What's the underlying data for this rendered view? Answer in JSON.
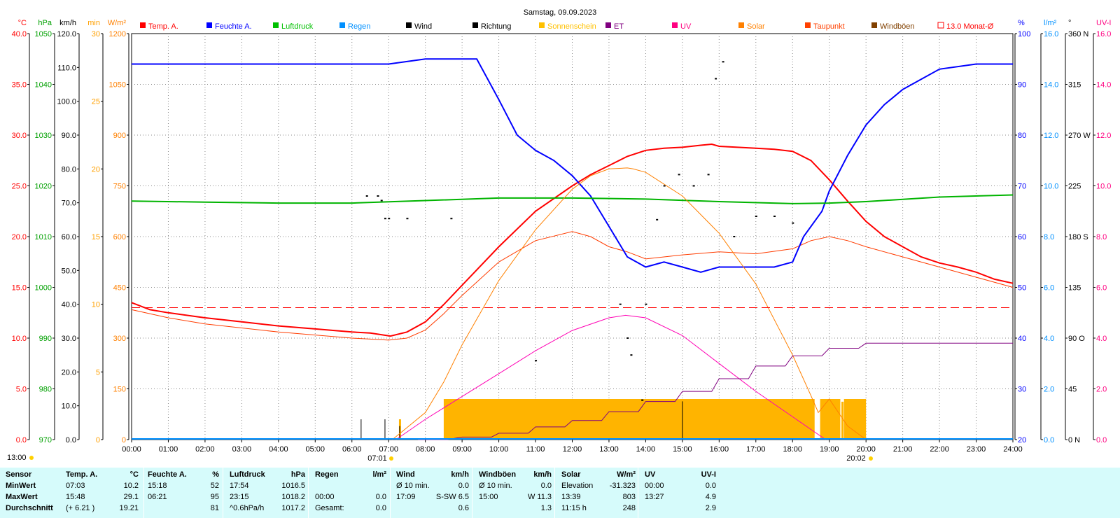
{
  "chart_data": {
    "type": "line",
    "title": "Samstag, 09.09.2023",
    "legend": [
      "Temp. A.",
      "Feuchte A.",
      "Luftdruck",
      "Regen",
      "Wind",
      "Richtung",
      "Sonnenschein",
      "ET",
      "UV",
      "Solar",
      "Taupunkt",
      "Windböen",
      "13.0 Monat-Ø"
    ],
    "x_ticks": [
      "00:00",
      "01:00",
      "02:00",
      "03:00",
      "04:00",
      "05:00",
      "06:00",
      "07:00",
      "08:00",
      "09:00",
      "10:00",
      "11:00",
      "12:00",
      "13:00",
      "14:00",
      "15:00",
      "16:00",
      "17:00",
      "18:00",
      "19:00",
      "20:00",
      "21:00",
      "22:00",
      "23:00",
      "24:00"
    ],
    "sunrise": "07:01",
    "sunset": "20:02",
    "sun_label": "13:00",
    "axes": {
      "temp": {
        "unit": "°C",
        "ticks": [
          "0.0",
          "5.0",
          "10.0",
          "15.0",
          "20.0",
          "25.0",
          "30.0",
          "35.0",
          "40.0"
        ],
        "range": [
          0,
          40
        ]
      },
      "press": {
        "unit": "hPa",
        "ticks": [
          "970",
          "980",
          "990",
          "1000",
          "1010",
          "1020",
          "1030",
          "1040",
          "1050"
        ],
        "range": [
          970,
          1050
        ]
      },
      "wind": {
        "unit": "km/h",
        "ticks": [
          "0.0",
          "10.0",
          "20.0",
          "30.0",
          "40.0",
          "50.0",
          "60.0",
          "70.0",
          "80.0",
          "90.0",
          "100.0",
          "110.0",
          "120.0"
        ],
        "range": [
          0,
          120
        ]
      },
      "min": {
        "unit": "min",
        "ticks": [
          "0",
          "5",
          "10",
          "15",
          "20",
          "25",
          "30"
        ],
        "range": [
          0,
          30
        ]
      },
      "solar": {
        "unit": "W/m²",
        "ticks": [
          "0",
          "150",
          "300",
          "450",
          "600",
          "750",
          "900",
          "1050",
          "1200"
        ],
        "range": [
          0,
          1200
        ]
      },
      "hum": {
        "unit": "%",
        "ticks": [
          "20",
          "30",
          "40",
          "50",
          "60",
          "70",
          "80",
          "90",
          "100"
        ],
        "range": [
          20,
          100
        ]
      },
      "rain": {
        "unit": "l/m²",
        "ticks": [
          "0.0",
          "2.0",
          "4.0",
          "6.0",
          "8.0",
          "10.0",
          "12.0",
          "14.0",
          "16.0"
        ],
        "range": [
          0,
          16
        ]
      },
      "dir": {
        "unit": "°",
        "ticks": [
          "0",
          "45",
          "90",
          "135",
          "180",
          "225",
          "270",
          "315",
          "360"
        ],
        "labels": [
          "N",
          "",
          "O",
          "",
          "S",
          "",
          "W",
          "",
          "N"
        ],
        "range": [
          0,
          360
        ]
      },
      "uv": {
        "unit": "UV-I",
        "ticks": [
          "0.0",
          "2.0",
          "4.0",
          "6.0",
          "8.0",
          "10.0",
          "12.0",
          "14.0",
          "16.0"
        ],
        "range": [
          0,
          16
        ]
      }
    },
    "series": [
      {
        "name": "Temp. A.",
        "axis": "temp",
        "color": "#ff0000",
        "x": [
          0,
          0.5,
          1,
          2,
          3,
          4,
          5,
          6,
          6.5,
          7.05,
          7.5,
          8,
          8.5,
          9,
          10,
          11,
          12,
          12.5,
          13,
          13.5,
          14,
          14.5,
          15,
          15.5,
          15.8,
          16,
          16.5,
          17,
          17.5,
          18,
          18.5,
          19,
          19.5,
          20,
          20.5,
          21,
          21.5,
          22,
          22.5,
          23,
          23.5,
          24
        ],
        "y": [
          13.5,
          12.8,
          12.5,
          12.0,
          11.6,
          11.2,
          10.9,
          10.6,
          10.5,
          10.2,
          10.6,
          11.6,
          13.3,
          15.2,
          19.0,
          22.5,
          25.0,
          26.1,
          27.0,
          27.9,
          28.5,
          28.7,
          28.8,
          29.0,
          29.1,
          28.9,
          28.8,
          28.7,
          28.6,
          28.4,
          27.5,
          25.6,
          23.5,
          21.5,
          20.0,
          19.0,
          18.0,
          17.4,
          17.0,
          16.5,
          15.8,
          15.4
        ]
      },
      {
        "name": "Taupunkt",
        "axis": "temp",
        "color": "#ff3c00",
        "x": [
          0,
          1,
          2,
          3,
          4,
          5,
          6,
          7,
          7.5,
          8,
          8.5,
          9,
          10,
          11,
          12,
          12.5,
          13,
          13.5,
          14,
          15,
          16,
          17,
          18,
          18.5,
          19,
          19.5,
          20,
          21,
          22,
          23,
          24
        ],
        "y": [
          12.8,
          12.0,
          11.4,
          11.0,
          10.6,
          10.3,
          10.0,
          9.8,
          10.0,
          10.8,
          12.4,
          14.2,
          17.5,
          19.6,
          20.5,
          20.0,
          19.0,
          18.5,
          17.8,
          18.2,
          18.5,
          18.3,
          18.8,
          19.6,
          20.0,
          19.6,
          19.0,
          18.0,
          17.0,
          16.0,
          15.0
        ]
      },
      {
        "name": "Feuchte A.",
        "axis": "hum",
        "color": "#0000ff",
        "x": [
          0,
          1,
          2,
          3,
          4,
          5,
          6,
          7,
          8,
          9,
          9.4,
          10,
          10.5,
          11,
          11.5,
          12,
          12.5,
          13,
          13.5,
          14,
          14.5,
          15,
          15.5,
          16,
          16.5,
          17,
          17.5,
          18,
          18.3,
          18.8,
          19,
          19.5,
          20,
          20.5,
          21,
          21.5,
          22,
          23,
          24
        ],
        "y": [
          94,
          94,
          94,
          94,
          94,
          94,
          94,
          94,
          95,
          95,
          95,
          87,
          80,
          77,
          75,
          72,
          68,
          62,
          56,
          54,
          55,
          54,
          53,
          54,
          54,
          54,
          54,
          55,
          60,
          65,
          69,
          76,
          82,
          86,
          89,
          91,
          93,
          94,
          94
        ]
      },
      {
        "name": "Luftdruck",
        "axis": "press",
        "color": "#00b400",
        "x": [
          0,
          2,
          4,
          6,
          8,
          10,
          12,
          14,
          16,
          18,
          19,
          20,
          22,
          24
        ],
        "y": [
          1017.0,
          1016.8,
          1016.6,
          1016.6,
          1017.1,
          1017.6,
          1017.6,
          1017.4,
          1016.9,
          1016.5,
          1016.6,
          1016.9,
          1017.8,
          1018.2
        ]
      },
      {
        "name": "Solar",
        "axis": "solar",
        "color": "#ff8000",
        "x": [
          7.1,
          8,
          8.5,
          9,
          10,
          11,
          12,
          12.5,
          13,
          13.5,
          13.66,
          14,
          15,
          16,
          17,
          18,
          18.5,
          18.7,
          19,
          19.5,
          20
        ],
        "y": [
          0,
          80,
          170,
          280,
          470,
          620,
          740,
          780,
          800,
          803,
          800,
          790,
          720,
          610,
          460,
          250,
          130,
          80,
          120,
          40,
          0
        ]
      },
      {
        "name": "UV",
        "axis": "uv",
        "color": "#ff00b4",
        "x": [
          7.2,
          8,
          9,
          10,
          11,
          12,
          13,
          13.45,
          14,
          15,
          16,
          17,
          18,
          18.5,
          18.9
        ],
        "y": [
          0,
          0.8,
          1.7,
          2.6,
          3.5,
          4.3,
          4.8,
          4.9,
          4.8,
          4.1,
          3.0,
          1.9,
          0.9,
          0.4,
          0
        ]
      },
      {
        "name": "ET",
        "axis": "rain",
        "color": "#800080",
        "x": [
          7.8,
          8.6,
          9,
          9.8,
          10,
          10.8,
          11,
          11.8,
          12,
          12.8,
          13,
          13.8,
          14,
          14.8,
          15,
          15.8,
          16,
          16.8,
          17,
          17.8,
          18,
          18.8,
          19,
          19.8,
          20,
          24
        ],
        "y": [
          0,
          0,
          0.1,
          0.1,
          0.25,
          0.25,
          0.5,
          0.5,
          0.75,
          0.75,
          1.1,
          1.1,
          1.5,
          1.5,
          1.9,
          1.9,
          2.4,
          2.4,
          2.9,
          2.9,
          3.3,
          3.3,
          3.6,
          3.6,
          3.8,
          3.8
        ]
      },
      {
        "name": "13.0 Monat-Ø",
        "axis": "temp",
        "color": "#ff0000",
        "dashed": true,
        "x": [
          0,
          24
        ],
        "y": [
          13.0,
          13.0
        ]
      }
    ],
    "sunshine_minutes": {
      "axis": "min",
      "color": "#ffb400",
      "blocks": [
        {
          "from": 8.5,
          "to": 18.6,
          "value": 3.0
        },
        {
          "from": 18.75,
          "to": 19.3,
          "value": 3.0
        },
        {
          "from": 19.4,
          "to": 20.0,
          "value": 3.0
        }
      ],
      "spikes": [
        {
          "x": 7.3,
          "value": 1.5
        },
        {
          "x": 19.35,
          "value": 2.8
        }
      ]
    },
    "wind_gust_peaks": [
      {
        "x": 6.25,
        "y": 6
      },
      {
        "x": 6.9,
        "y": 6
      },
      {
        "x": 7.3,
        "y": 4
      },
      {
        "x": 15.0,
        "y": 11.3
      }
    ],
    "wind_avg_max": 6.5,
    "direction_points": [
      {
        "x": 6.4,
        "y": 216
      },
      {
        "x": 6.7,
        "y": 216
      },
      {
        "x": 6.8,
        "y": 212
      },
      {
        "x": 6.9,
        "y": 196
      },
      {
        "x": 7.0,
        "y": 196
      },
      {
        "x": 7.5,
        "y": 196
      },
      {
        "x": 8.7,
        "y": 196
      },
      {
        "x": 11.0,
        "y": 70
      },
      {
        "x": 13.3,
        "y": 120
      },
      {
        "x": 13.5,
        "y": 90
      },
      {
        "x": 13.6,
        "y": 75
      },
      {
        "x": 13.9,
        "y": 35
      },
      {
        "x": 14.0,
        "y": 120
      },
      {
        "x": 14.3,
        "y": 195
      },
      {
        "x": 14.5,
        "y": 225
      },
      {
        "x": 14.9,
        "y": 235
      },
      {
        "x": 15.3,
        "y": 225
      },
      {
        "x": 15.7,
        "y": 235
      },
      {
        "x": 15.9,
        "y": 320
      },
      {
        "x": 16.1,
        "y": 335
      },
      {
        "x": 16.4,
        "y": 180
      },
      {
        "x": 17.0,
        "y": 198
      },
      {
        "x": 17.5,
        "y": 198
      },
      {
        "x": 18.0,
        "y": 192
      }
    ]
  },
  "stats": {
    "headers": {
      "sensor": "Sensor",
      "temp": "Temp. A.",
      "temp_u": "°C",
      "hum": "Feuchte A.",
      "hum_u": "%",
      "press": "Luftdruck",
      "press_u": "hPa",
      "rain": "Regen",
      "rain_u": "l/m²",
      "wind": "Wind",
      "wind_u": "km/h",
      "gust": "Windböen",
      "gust_u": "km/h",
      "solar": "Solar",
      "solar_u": "W/m²",
      "uv": "UV",
      "uv_u": "UV-I"
    },
    "rows": [
      {
        "label": "MinWert",
        "temp_t": "07:03",
        "temp_v": "10.2",
        "hum_t": "15:18",
        "hum_v": "52",
        "press_t": "17:54",
        "press_v": "1016.5",
        "rain_t": "",
        "rain_v": "",
        "wind_t": "Ø 10 min.",
        "wind_v": "0.0",
        "gust_t": "Ø 10 min.",
        "gust_v": "0.0",
        "solar_t": "Elevation",
        "solar_v": "-31.323",
        "uv_t": "00:00",
        "uv_v": "0.0"
      },
      {
        "label": "MaxWert",
        "temp_t": "15:48",
        "temp_v": "29.1",
        "hum_t": "06:21",
        "hum_v": "95",
        "press_t": "23:15",
        "press_v": "1018.2",
        "rain_t": "00:00",
        "rain_v": "0.0",
        "wind_t": "17:09",
        "wind_v": "S-SW 6.5",
        "gust_t": "15:00",
        "gust_v": "W 11.3",
        "solar_t": "13:39",
        "solar_v": "803",
        "uv_t": "13:27",
        "uv_v": "4.9"
      },
      {
        "label": "Durchschnitt",
        "temp_t": "(+ 6.21 )",
        "temp_v": "19.21",
        "hum_t": "",
        "hum_v": "81",
        "press_t": "^0.6hPa/h",
        "press_v": "1017.2",
        "rain_t": "Gesamt:",
        "rain_v": "0.0",
        "wind_t": "",
        "wind_v": "0.6",
        "gust_t": "",
        "gust_v": "1.3",
        "solar_t": "11:15 h",
        "solar_v": "248",
        "uv_t": "",
        "uv_v": "2.9"
      }
    ]
  }
}
